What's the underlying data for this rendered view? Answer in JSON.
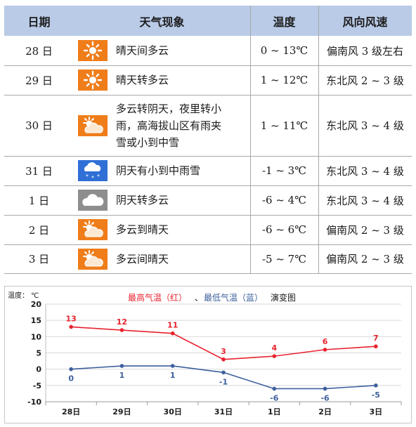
{
  "table": {
    "headers": [
      "日期",
      "天气现象",
      "温度",
      "风向风速"
    ],
    "rows": [
      {
        "date": "28 日",
        "icon": "sunny-icon",
        "weather": "晴天间多云",
        "temp": "0 ~ 13℃",
        "wind": "偏南风 3 级左右"
      },
      {
        "date": "29 日",
        "icon": "sunny-icon",
        "weather": "晴天转多云",
        "temp": "1 ~ 12℃",
        "wind": "东北风 2 ~ 3 级"
      },
      {
        "date": "30 日",
        "icon": "partly-cloudy-icon",
        "weather_lines": [
          "多云转阴天，夜里转小",
          "雨，高海拔山区有雨夹",
          "雪或小到中雪"
        ],
        "temp": "1 ~ 11℃",
        "wind": "东北风 3 ~ 4 级"
      },
      {
        "date": "31 日",
        "icon": "snow-icon",
        "weather": "阴天有小到中雨雪",
        "temp": "-1 ~  3℃",
        "wind": "东北风 3 ~ 4 级"
      },
      {
        "date": "1 日",
        "icon": "cloudy-icon",
        "weather": "阴天转多云",
        "temp": "-6 ~  4℃",
        "wind": "东北风 3 ~ 4 级"
      },
      {
        "date": "2 日",
        "icon": "partly-cloudy-icon",
        "weather": "多云到晴天",
        "temp": "-6 ~  6℃",
        "wind": "偏南风 2 ~ 3 级"
      },
      {
        "date": "3 日",
        "icon": "partly-cloudy-icon",
        "weather": "多云间晴天",
        "temp": "-5 ~  7℃",
        "wind": "偏南风 2 ~ 3 级"
      }
    ]
  },
  "chart_data": {
    "type": "line",
    "title_parts": {
      "red": "最高气温（红）",
      "sep": "、",
      "blue": "最低气温（蓝）",
      "tail": "演变图"
    },
    "ylabel": "温度：  ℃",
    "categories": [
      "28日",
      "29日",
      "30日",
      "31日",
      "1日",
      "2日",
      "3日"
    ],
    "ylim": [
      -10,
      20
    ],
    "yticks": [
      20,
      15,
      10,
      5,
      0,
      -5,
      -10
    ],
    "series": [
      {
        "name": "最高气温（红）",
        "color": "#e8232f",
        "values": [
          13,
          12,
          11,
          3,
          4,
          6,
          7
        ]
      },
      {
        "name": "最低气温（蓝）",
        "color": "#3c5f9c",
        "values": [
          0,
          1,
          1,
          -1,
          -6,
          -6,
          -5
        ]
      }
    ],
    "grid": true
  },
  "colors": {
    "header_bg": "#b9cbe7",
    "high": "#e8232f",
    "low": "#3c5f9c"
  }
}
